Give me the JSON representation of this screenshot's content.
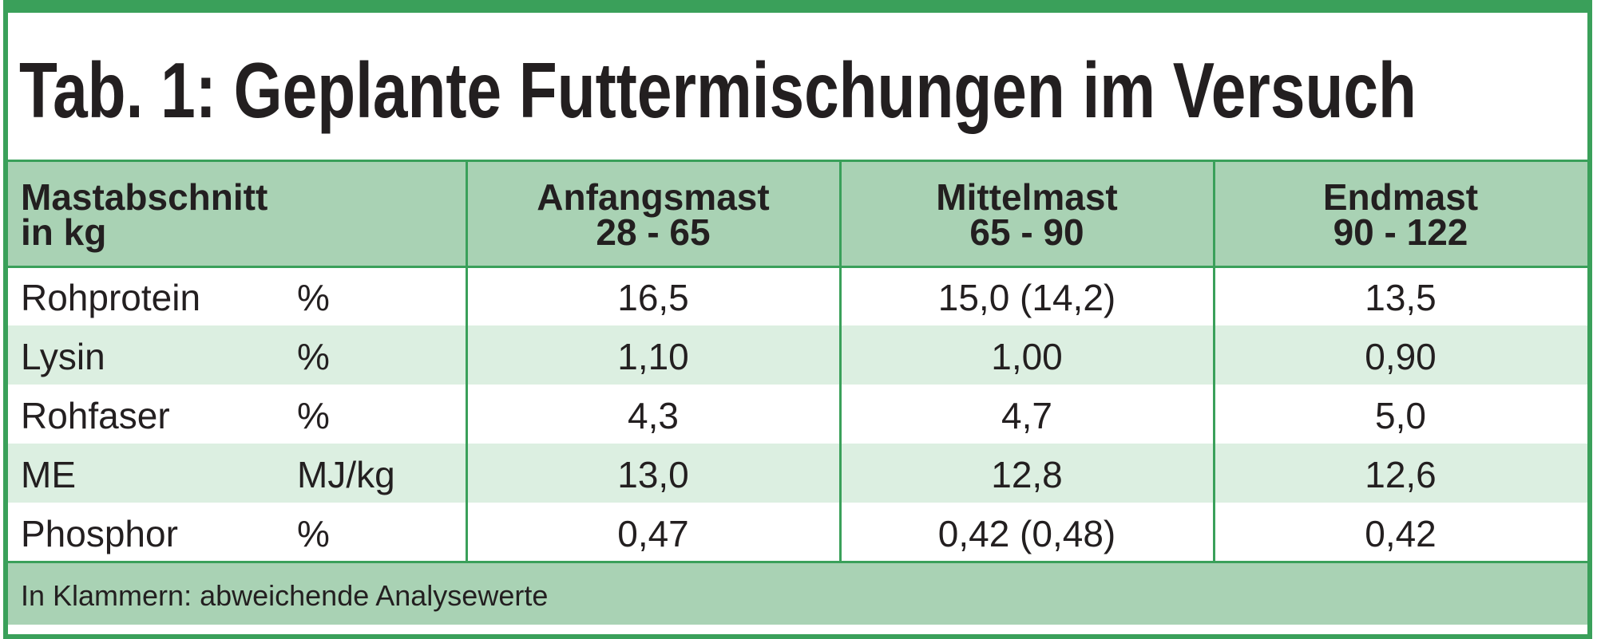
{
  "title": "Tab. 1: Geplante Futtermischungen im Versuch",
  "header": [
    [
      "Mastabschnitt",
      "in kg"
    ],
    [
      "Anfangsmast",
      "28 - 65"
    ],
    [
      "Mittelmast",
      "65 - 90"
    ],
    [
      "Endmast",
      "90 - 122"
    ]
  ],
  "rows": [
    {
      "label": "Rohprotein",
      "unit": "%",
      "values": [
        "16,5",
        "15,0 (14,2)",
        "13,5"
      ]
    },
    {
      "label": "Lysin",
      "unit": "%",
      "values": [
        "1,10",
        "1,00",
        "0,90"
      ]
    },
    {
      "label": "Rohfaser",
      "unit": "%",
      "values": [
        "4,3",
        "4,7",
        "5,0"
      ]
    },
    {
      "label": "ME",
      "unit": "MJ/kg",
      "values": [
        "13,0",
        "12,8",
        "12,6"
      ]
    },
    {
      "label": "Phosphor",
      "unit": "%",
      "values": [
        "0,47",
        "0,42 (0,48)",
        "0,42"
      ]
    }
  ],
  "footer": "In Klammern: abweichende Analysewerte"
}
